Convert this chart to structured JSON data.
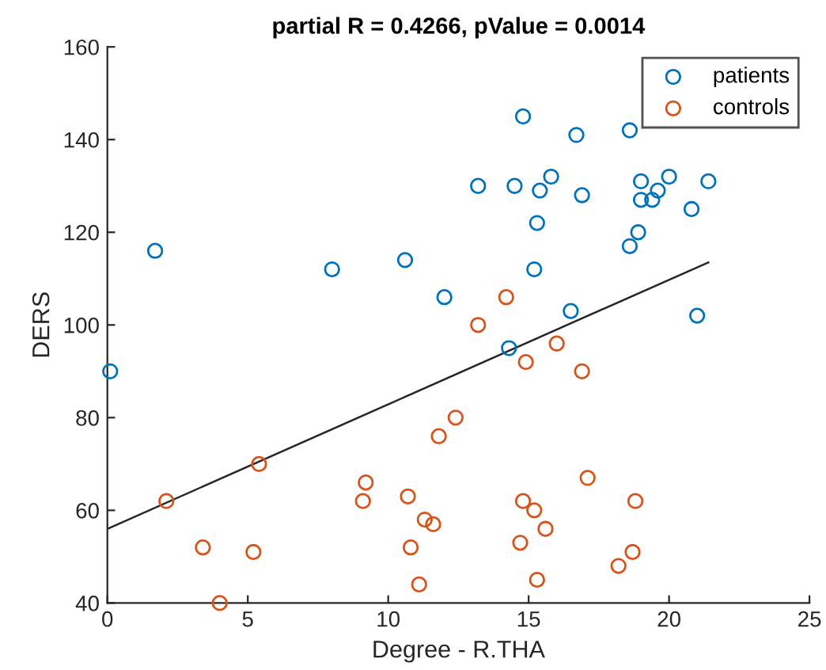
{
  "chart_data": {
    "type": "scatter",
    "title": "partial R = 0.4266, pValue = 0.0014",
    "xlabel": "Degree - R.THA",
    "ylabel": "DERS",
    "xlim": [
      0,
      25
    ],
    "xticks": [
      0,
      5,
      10,
      15,
      20,
      25
    ],
    "ylim": [
      40,
      160
    ],
    "yticks": [
      40,
      60,
      80,
      100,
      120,
      140,
      160
    ],
    "grid": false,
    "legend": "top right",
    "series": [
      {
        "name": "patients",
        "color": "#0072bd",
        "marker": "circle",
        "x": [
          0.1,
          1.7,
          8.0,
          10.6,
          12.0,
          13.2,
          14.5,
          14.3,
          14.8,
          15.2,
          15.3,
          15.4,
          15.8,
          16.5,
          16.7,
          16.9,
          18.6,
          18.6,
          18.9,
          19.0,
          19.0,
          19.4,
          19.6,
          20.0,
          20.8,
          21.0,
          21.4
        ],
        "values": [
          90,
          116,
          112,
          114,
          106,
          130,
          130,
          95,
          145,
          112,
          122,
          129,
          132,
          103,
          141,
          128,
          142,
          117,
          120,
          131,
          127,
          127,
          129,
          132,
          125,
          102,
          131
        ]
      },
      {
        "name": "controls",
        "color": "#d95319",
        "marker": "circle",
        "x": [
          2.1,
          3.4,
          5.2,
          4.0,
          5.4,
          9.1,
          9.2,
          10.7,
          10.8,
          11.1,
          11.3,
          11.6,
          11.8,
          12.4,
          13.2,
          14.2,
          14.9,
          16.0,
          16.9,
          14.7,
          14.8,
          15.2,
          15.3,
          15.6,
          17.1,
          18.2,
          18.7,
          18.8
        ],
        "values": [
          62,
          52,
          51,
          40,
          70,
          62,
          66,
          63,
          52,
          44,
          58,
          57,
          76,
          80,
          100,
          106,
          92,
          96,
          90,
          53,
          62,
          60,
          45,
          56,
          67,
          48,
          51,
          62
        ]
      },
      {
        "type": "line",
        "color": "#262626",
        "marker": "none",
        "x": [
          0,
          21.4
        ],
        "values": [
          56,
          113.5
        ]
      }
    ]
  }
}
